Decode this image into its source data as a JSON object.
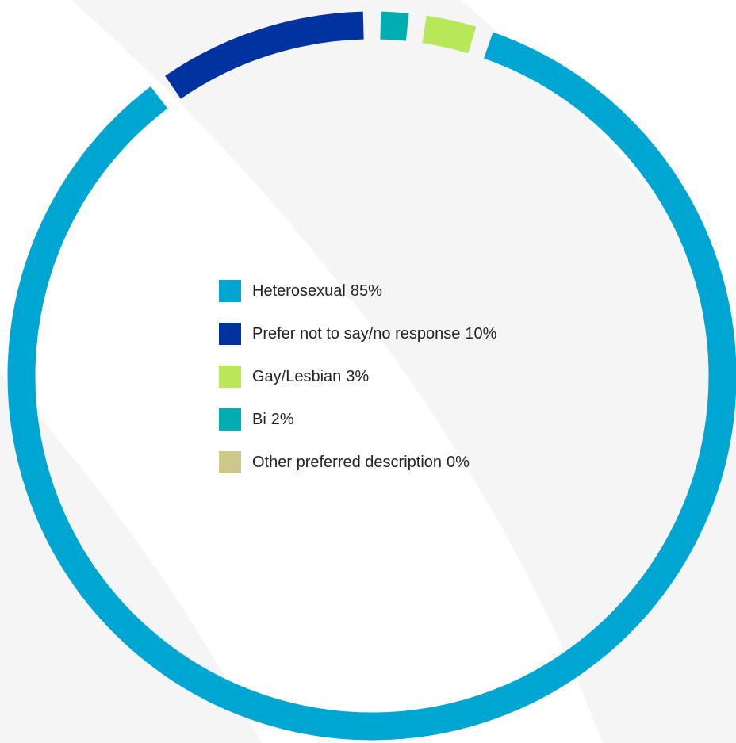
{
  "chart_data": {
    "type": "donut",
    "categories": [
      "Heterosexual",
      "Prefer not to say/no response",
      "Gay/Lesbian",
      "Bi",
      "Other preferred description"
    ],
    "values": [
      85,
      10,
      3,
      2,
      0
    ],
    "value_labels": [
      "85%",
      "10%",
      "3%",
      "2%",
      "0%"
    ],
    "colors": [
      "#00a6d2",
      "#0033a0",
      "#b9e75a",
      "#00adb0",
      "#cdc78a"
    ],
    "legend": "center"
  }
}
